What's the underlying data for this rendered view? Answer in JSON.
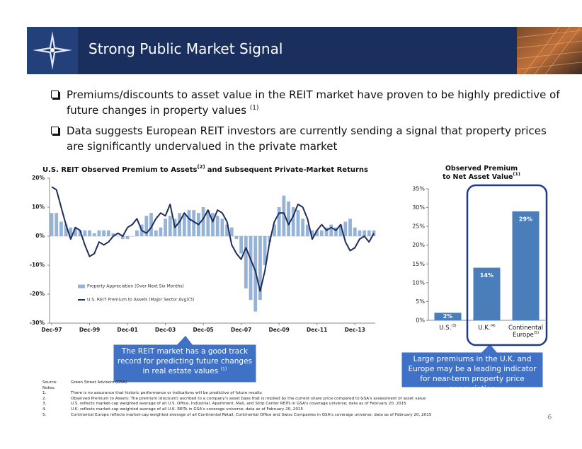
{
  "header": {
    "title": "Strong Public Market Signal"
  },
  "bullets": [
    {
      "text": "Premiums/discounts to asset value in the REIT market have proven to be highly predictive of future changes in property values",
      "note": "(1)"
    },
    {
      "text": "Data suggests European REIT investors are currently sending a signal that property prices are significantly undervalued in the private market"
    }
  ],
  "chart_data": [
    {
      "type": "combo",
      "title": "U.S. REIT Observed Premium to Assets",
      "title_sup": "(2)",
      "title_end": "and Subsequent Private-Market Returns",
      "x": [
        "Dec-97",
        "Mar-98",
        "Jun-98",
        "Sep-98",
        "Dec-98",
        "Mar-99",
        "Jun-99",
        "Sep-99",
        "Dec-99",
        "Mar-00",
        "Jun-00",
        "Sep-00",
        "Dec-00",
        "Mar-01",
        "Jun-01",
        "Sep-01",
        "Dec-01",
        "Mar-02",
        "Jun-02",
        "Sep-02",
        "Dec-02",
        "Mar-03",
        "Jun-03",
        "Sep-03",
        "Dec-03",
        "Mar-04",
        "Jun-04",
        "Sep-04",
        "Dec-04",
        "Mar-05",
        "Jun-05",
        "Sep-05",
        "Dec-05",
        "Mar-06",
        "Jun-06",
        "Sep-06",
        "Dec-06",
        "Mar-07",
        "Jun-07",
        "Sep-07",
        "Dec-07",
        "Mar-08",
        "Jun-08",
        "Sep-08",
        "Dec-08",
        "Mar-09",
        "Jun-09",
        "Sep-09",
        "Dec-09",
        "Mar-10",
        "Jun-10",
        "Sep-10",
        "Dec-10",
        "Mar-11",
        "Jun-11",
        "Sep-11",
        "Dec-11",
        "Mar-12",
        "Jun-12",
        "Sep-12",
        "Dec-12",
        "Mar-13",
        "Jun-13",
        "Sep-13",
        "Dec-13",
        "Mar-14",
        "Jun-14",
        "Sep-14",
        "Dec-14"
      ],
      "xticks": [
        "Dec-97",
        "Dec-99",
        "Dec-01",
        "Dec-03",
        "Dec-05",
        "Dec-07",
        "Dec-09",
        "Dec-11",
        "Dec-13"
      ],
      "series": [
        {
          "name": "Property Appreciation (Over Next Six Months)",
          "type": "bar",
          "color": "#95b3d7",
          "values": [
            8,
            8,
            5,
            4,
            3,
            3,
            2,
            2,
            2,
            1,
            2,
            2,
            2,
            1,
            0,
            -1,
            -1,
            0,
            2,
            4,
            7,
            8,
            2,
            3,
            6,
            7,
            6,
            8,
            8,
            9,
            9,
            8,
            10,
            9,
            8,
            7,
            6,
            4,
            3,
            -1,
            -6,
            -18,
            -22,
            -26,
            -22,
            -10,
            -2,
            4,
            10,
            14,
            12,
            10,
            9,
            6,
            4,
            2,
            2,
            2,
            3,
            4,
            3,
            4,
            5,
            6,
            3,
            2,
            2,
            2,
            2
          ]
        },
        {
          "name": "U.S. REIT Premium to Assets (Major Sector Avg)(3)",
          "type": "line",
          "color": "#1f2d5a",
          "values": [
            17,
            16,
            10,
            4,
            -1,
            3,
            2,
            -3,
            -7,
            -6,
            -2,
            -3,
            -2,
            0,
            1,
            0,
            3,
            4,
            6,
            2,
            1,
            3,
            6,
            8,
            7,
            11,
            3,
            5,
            8,
            6,
            5,
            4,
            6,
            9,
            5,
            9,
            8,
            5,
            -3,
            -6,
            -8,
            -4,
            -8,
            -12,
            -19,
            -12,
            -2,
            5,
            8,
            8,
            4,
            7,
            11,
            10,
            6,
            -1,
            2,
            4,
            2,
            3,
            2,
            4,
            -2,
            -5,
            -4,
            -1,
            0,
            -2,
            1
          ]
        }
      ],
      "ylim": [
        -30,
        20
      ],
      "yticks": [
        {
          "value": 20,
          "label": "20%"
        },
        {
          "value": 10,
          "label": "10%"
        },
        {
          "value": 0,
          "label": "0%"
        },
        {
          "value": -10,
          "label": "-10%"
        },
        {
          "value": -20,
          "label": "-20%"
        },
        {
          "value": -30,
          "label": "-30%"
        }
      ],
      "legend": "lower-left",
      "grid": false
    },
    {
      "type": "bar",
      "title": [
        "Observed Premium",
        "to Net Asset Value"
      ],
      "title_sup": "(1)",
      "categories": [
        "U.S.",
        "U.K.",
        "Continental Europe"
      ],
      "category_notes": [
        "(3)",
        "(4)",
        "(5)"
      ],
      "values": [
        2,
        14,
        29
      ],
      "value_labels": [
        "2%",
        "14%",
        "29%"
      ],
      "color": "#4a7ebb",
      "ylim": [
        0,
        35
      ],
      "yticks": [
        {
          "value": 0,
          "label": "0%"
        },
        {
          "value": 5,
          "label": "5%"
        },
        {
          "value": 10,
          "label": "10%"
        },
        {
          "value": 15,
          "label": "15%"
        },
        {
          "value": 20,
          "label": "20%"
        },
        {
          "value": 25,
          "label": "25%"
        },
        {
          "value": 30,
          "label": "30%"
        },
        {
          "value": 35,
          "label": "35%"
        }
      ],
      "grid": false
    }
  ],
  "callouts": [
    {
      "text": "The REIT market has a good track record for predicting future changes in real estate values",
      "note": "(1)"
    },
    {
      "text": "Large premiums in the U.K. and Europe may be a leading indicator for near-term property price appreciation"
    }
  ],
  "footnotes": {
    "source_label": "Source:",
    "source": "Green Street Advisors (GSA)",
    "notes_label": "Notes:",
    "notes": [
      {
        "num": "1.",
        "text": "There is no assurance that historic performance or indications will be predictive of future results"
      },
      {
        "num": "2.",
        "text": "Observed Premium to Assets: The premium (discount) ascribed to a company's asset base that is implied by the current share price compared to GSA's assessment of asset value"
      },
      {
        "num": "3.",
        "text": "U.S. reflects market-cap weighted average of all U.S. Office, Industrial, Apartment, Mall, and Strip Center REITs in GSA's coverage universe; data as of February 20, 2015"
      },
      {
        "num": "4.",
        "text": "U.K. reflects market-cap weighted average of all U.K. REITs in GSA's coverage universe; data as of February 20, 2015"
      },
      {
        "num": "5.",
        "text": "Continental Europe reflects market-cap weighted average of all Continental Retail, Continental Office and Swiss Companies in GSA's coverage universe; data as of February 20, 2015"
      }
    ]
  },
  "page_number": "6"
}
